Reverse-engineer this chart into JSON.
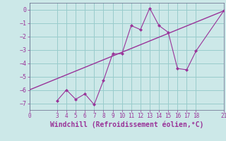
{
  "x_data": [
    3,
    4,
    5,
    6,
    7,
    8,
    9,
    10,
    11,
    12,
    13,
    14,
    15,
    16,
    17,
    18,
    21
  ],
  "y_data": [
    -6.8,
    -6.0,
    -6.7,
    -6.3,
    -7.1,
    -5.3,
    -3.3,
    -3.3,
    -1.2,
    -1.5,
    0.1,
    -1.2,
    -1.7,
    -4.4,
    -4.5,
    -3.1,
    -0.1
  ],
  "trend_x": [
    0,
    21
  ],
  "trend_y": [
    -6.0,
    -0.1
  ],
  "line_color": "#993399",
  "bg_color": "#cce8e8",
  "grid_color": "#99cccc",
  "xlabel": "Windchill (Refroidissement éolien,°C)",
  "xlim": [
    0,
    21
  ],
  "ylim": [
    -7.5,
    0.5
  ],
  "xticks": [
    0,
    3,
    4,
    5,
    6,
    7,
    8,
    9,
    10,
    11,
    12,
    13,
    14,
    15,
    16,
    17,
    18,
    21
  ],
  "yticks": [
    0,
    -1,
    -2,
    -3,
    -4,
    -5,
    -6,
    -7
  ]
}
